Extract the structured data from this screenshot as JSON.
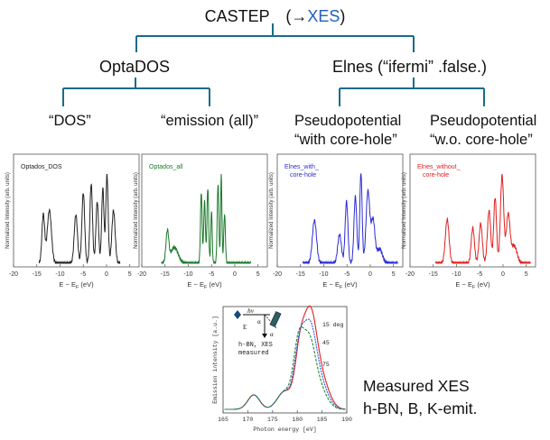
{
  "tree": {
    "root_prefix": "CASTEP　(→",
    "root_accent": "XES",
    "root_suffix": ")",
    "left": "OptaDOS",
    "right": "Elnes (“ifermi” .false.)",
    "leaf1": "“DOS”",
    "leaf2": "“emission (all)”",
    "leaf3_line1": "Pseudopotential",
    "leaf3_line2": "“with core-hole”",
    "leaf4_line1": "Pseudopotential",
    "leaf4_line2": "“w.o. core-hole”",
    "connector_color": "#1a6b8c",
    "accent_color": "#1f5fbf"
  },
  "panels": [
    {
      "legend": "Optados_DOS",
      "color": "#222222",
      "ylabel": "Normalized Intensity (arb. units)",
      "xlabel": "E − E",
      "xlabel_sub": "F",
      "xlabel_unit": "(eV)",
      "xticks": [
        "-20",
        "-15",
        "-10",
        "-5",
        "0",
        "5"
      ]
    },
    {
      "legend": "Optados_all",
      "color": "#1a7a2a",
      "ylabel": "Normalized Intensity (arb. units)",
      "xlabel": "E − E",
      "xlabel_sub": "F",
      "xlabel_unit": "(eV)",
      "xticks": [
        "-20",
        "-15",
        "-10",
        "-5",
        "0",
        "5"
      ]
    },
    {
      "legend": "Elnes_with_",
      "legend2": "core-hole",
      "color": "#2b2bd6",
      "ylabel": "Normalized Intensity (arb. units)",
      "xlabel": "E − E",
      "xlabel_sub": "F",
      "xlabel_unit": "(eV)",
      "xticks": [
        "-20",
        "-15",
        "-10",
        "-5",
        "0",
        "5"
      ]
    },
    {
      "legend": "Elnes_without_",
      "legend2": "core-hole",
      "color": "#e02020",
      "ylabel": "Normalized Intensity (arb. units)",
      "xlabel": "E − E",
      "xlabel_sub": "F",
      "xlabel_unit": "(eV)",
      "xticks": [
        "-20",
        "-15",
        "-10",
        "-5",
        "0",
        "5"
      ]
    }
  ],
  "measured": {
    "ylabel": "Emission intensity [a.u.]",
    "xlabel": "Photon energy [eV]",
    "xticks": [
      "165",
      "170",
      "175",
      "180",
      "185",
      "190"
    ],
    "angles": [
      "15 deg",
      "45",
      "75"
    ],
    "sample_line1": "h-BN, XES",
    "sample_line2": "measured",
    "hv": "hv",
    "e": "E",
    "alpha": "α",
    "series_colors": [
      "#e02020",
      "#2b5bd6",
      "#1a8a3a"
    ]
  },
  "side_note": {
    "line1": "Measured XES",
    "line2": "h-BN, B, K-emit."
  }
}
